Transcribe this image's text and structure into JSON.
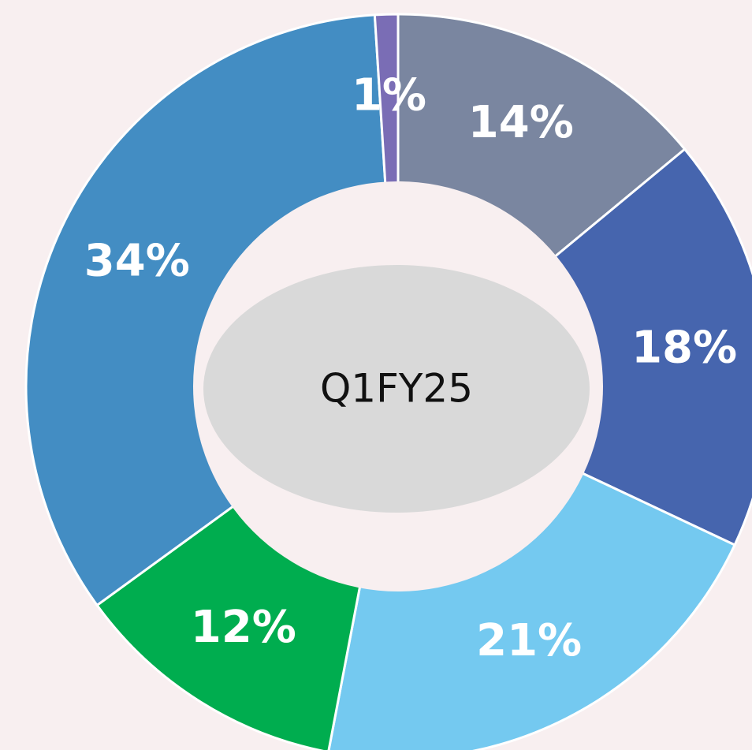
{
  "chart_data": {
    "type": "pie",
    "center_label": "Q1FY25",
    "values": [
      14,
      18,
      21,
      12,
      34,
      1
    ],
    "value_labels": [
      "14%",
      "18%",
      "21%",
      "12%",
      "34%",
      "1%"
    ],
    "colors": [
      "#7a86a0",
      "#4665ae",
      "#74c9f0",
      "#00ad4f",
      "#438dc3",
      "#7a6db5"
    ]
  }
}
